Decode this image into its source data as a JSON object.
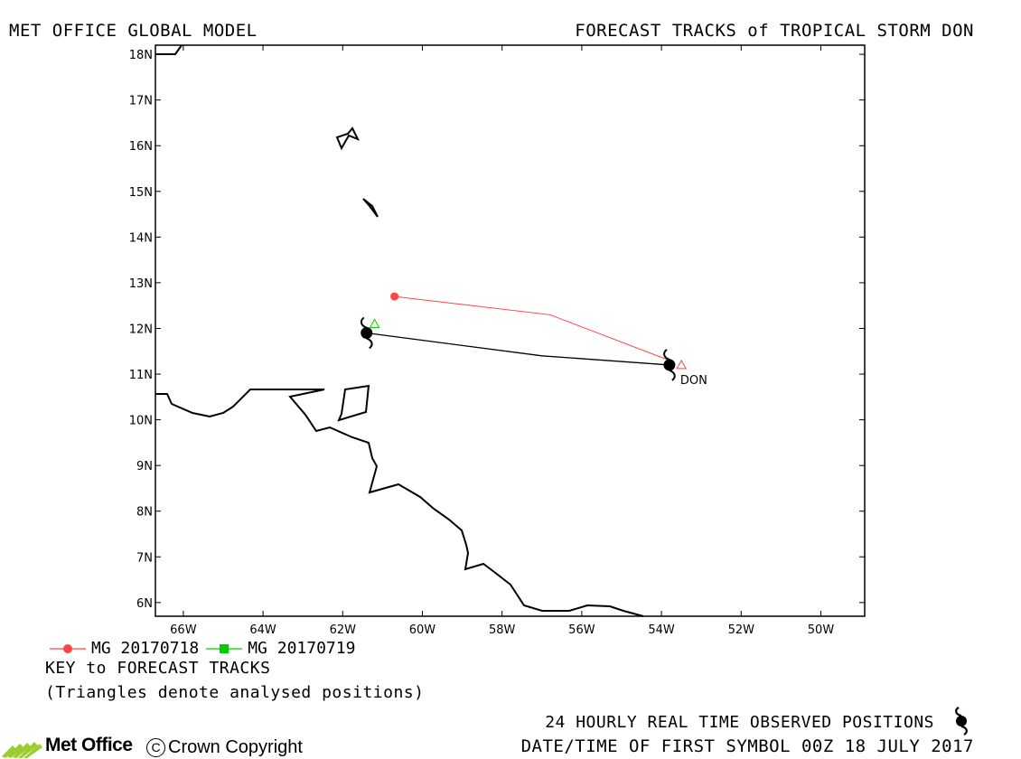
{
  "header": {
    "left_title": "MET OFFICE GLOBAL MODEL",
    "right_title": "FORECAST TRACKS of TROPICAL STORM DON"
  },
  "map": {
    "lon_range": [
      -66.7,
      -48.9
    ],
    "lat_range": [
      5.7,
      18.2
    ],
    "lat_ticks": [
      "6N",
      "7N",
      "8N",
      "9N",
      "10N",
      "11N",
      "12N",
      "13N",
      "14N",
      "15N",
      "16N",
      "17N",
      "18N"
    ],
    "lon_ticks": [
      "66W",
      "64W",
      "62W",
      "60W",
      "58W",
      "56W",
      "54W",
      "52W",
      "50W"
    ],
    "storm_label": "DON",
    "tracks": [
      {
        "name": "MG 20170718",
        "color": "#ff4444",
        "points": [
          [
            -53.8,
            11.3
          ],
          [
            -56.8,
            12.3
          ],
          [
            -60.7,
            12.7
          ]
        ],
        "analysed_position": [
          -53.5,
          11.2
        ]
      },
      {
        "name": "MG 20170719",
        "color": "#00cc00",
        "points": [],
        "analysed_position": [
          -61.2,
          12.1
        ]
      }
    ],
    "observed_track": {
      "color": "#000000",
      "points": [
        [
          -53.8,
          11.2
        ],
        [
          -57.0,
          11.4
        ],
        [
          -61.4,
          11.9
        ]
      ]
    }
  },
  "legend": {
    "items": [
      {
        "label": "MG 20170718",
        "color": "#ff4444",
        "marker": "circle"
      },
      {
        "label": "MG 20170719",
        "color": "#00cc00",
        "marker": "square"
      }
    ]
  },
  "notes": {
    "key_title": "KEY to FORECAST TRACKS",
    "key_note": "(Triangles denote analysed positions)",
    "observed": "24 HOURLY REAL TIME OBSERVED POSITIONS",
    "date": "DATE/TIME OF FIRST SYMBOL 00Z 18 JULY 2017"
  },
  "footer": {
    "brand": "Met Office",
    "copyright": "Crown Copyright",
    "copyright_symbol": "C"
  },
  "icons": [
    "hurricane-symbol-icon",
    "met-office-logo-icon",
    "copyright-icon"
  ]
}
